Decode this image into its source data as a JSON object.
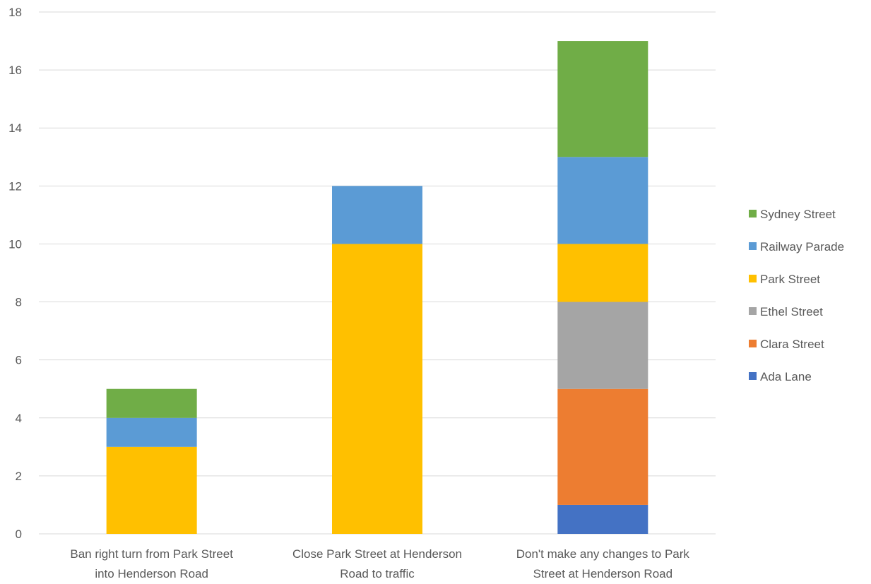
{
  "chart_data": {
    "type": "bar",
    "stacked": true,
    "categories": [
      [
        "Ban right turn from Park Street",
        "into Henderson Road"
      ],
      [
        "Close Park Street at Henderson",
        "Road to traffic"
      ],
      [
        "Don't make any changes to Park",
        "Street at Henderson Road"
      ]
    ],
    "series": [
      {
        "name": "Ada Lane",
        "color": "#4472C4",
        "values": [
          0,
          0,
          1
        ]
      },
      {
        "name": "Clara Street",
        "color": "#ED7D31",
        "values": [
          0,
          0,
          4
        ]
      },
      {
        "name": "Ethel Street",
        "color": "#A5A5A5",
        "values": [
          0,
          0,
          3
        ]
      },
      {
        "name": "Park Street",
        "color": "#FFC000",
        "values": [
          3,
          10,
          2
        ]
      },
      {
        "name": "Railway Parade",
        "color": "#5B9BD5",
        "values": [
          1,
          2,
          3
        ]
      },
      {
        "name": "Sydney Street",
        "color": "#70AD47",
        "values": [
          1,
          0,
          4
        ]
      }
    ],
    "ylim": [
      0,
      18
    ],
    "yticks": [
      0,
      2,
      4,
      6,
      8,
      10,
      12,
      14,
      16,
      18
    ],
    "grid": true,
    "legend_position": "right",
    "title": "",
    "xlabel": "",
    "ylabel": ""
  }
}
